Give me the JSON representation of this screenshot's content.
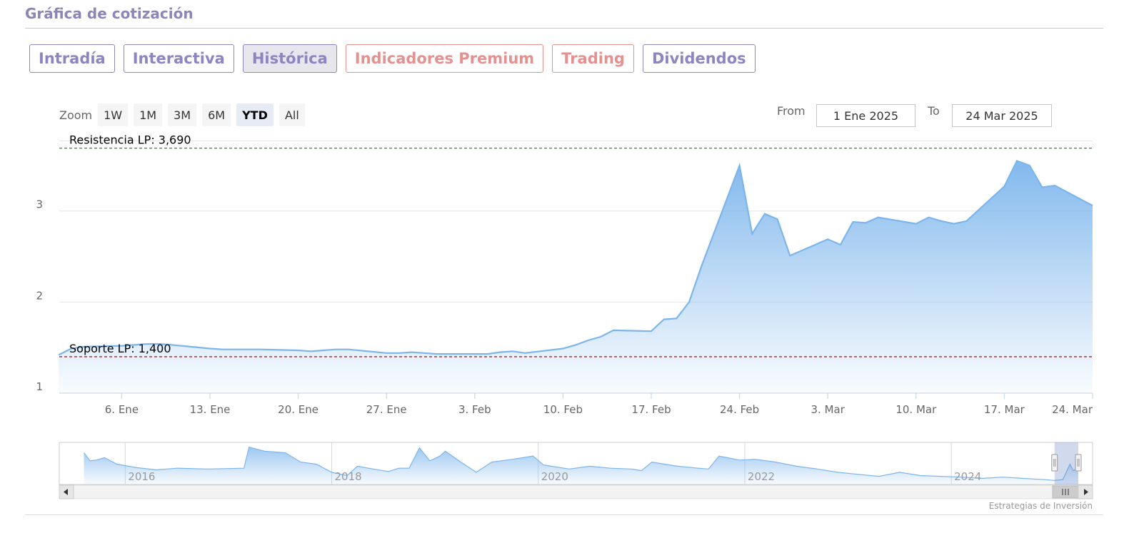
{
  "section_title": "Gráfica de cotización",
  "tabs": [
    {
      "label": "Intradía",
      "style": "normal"
    },
    {
      "label": "Interactiva",
      "style": "normal"
    },
    {
      "label": "Histórica",
      "style": "active"
    },
    {
      "label": "Indicadores Premium",
      "style": "premium"
    },
    {
      "label": "Trading",
      "style": "premium"
    },
    {
      "label": "Dividendos",
      "style": "normal"
    }
  ],
  "zoom": {
    "label": "Zoom",
    "buttons": [
      "1W",
      "1M",
      "3M",
      "6M",
      "YTD",
      "All"
    ],
    "selected": "YTD"
  },
  "range": {
    "from_label": "From",
    "from_value": "1 Ene 2025",
    "to_label": "To",
    "to_value": "24 Mar 2025"
  },
  "credit": "Estrategias de Inversión",
  "colors": {
    "line": "#7cb5ec",
    "resistance": "#2e8b2e",
    "support": "#b22222",
    "tab_accent": "#8c85c2",
    "premium_accent": "#e4918f"
  },
  "chart_data": {
    "type": "area",
    "ylim": [
      1,
      3.75
    ],
    "y_ticks": [
      1,
      2,
      3
    ],
    "xlim": [
      "2025-01-01",
      "2025-03-24"
    ],
    "x_ticks": [
      {
        "date": "2025-01-06",
        "label": "6. Ene"
      },
      {
        "date": "2025-01-13",
        "label": "13. Ene"
      },
      {
        "date": "2025-01-20",
        "label": "20. Ene"
      },
      {
        "date": "2025-01-27",
        "label": "27. Ene"
      },
      {
        "date": "2025-02-03",
        "label": "3. Feb"
      },
      {
        "date": "2025-02-10",
        "label": "10. Feb"
      },
      {
        "date": "2025-02-17",
        "label": "17. Feb"
      },
      {
        "date": "2025-02-24",
        "label": "24. Feb"
      },
      {
        "date": "2025-03-03",
        "label": "3. Mar"
      },
      {
        "date": "2025-03-10",
        "label": "10. Mar"
      },
      {
        "date": "2025-03-17",
        "label": "17. Mar"
      },
      {
        "date": "2025-03-24",
        "label": "24. Mar"
      }
    ],
    "series": [
      {
        "points": [
          [
            "2025-01-01",
            1.42
          ],
          [
            "2025-01-02",
            1.49
          ],
          [
            "2025-01-03",
            1.51
          ],
          [
            "2025-01-06",
            1.52
          ],
          [
            "2025-01-07",
            1.53
          ],
          [
            "2025-01-08",
            1.54
          ],
          [
            "2025-01-09",
            1.54
          ],
          [
            "2025-01-10",
            1.53
          ],
          [
            "2025-01-13",
            1.49
          ],
          [
            "2025-01-14",
            1.48
          ],
          [
            "2025-01-15",
            1.48
          ],
          [
            "2025-01-16",
            1.48
          ],
          [
            "2025-01-17",
            1.48
          ],
          [
            "2025-01-20",
            1.47
          ],
          [
            "2025-01-21",
            1.46
          ],
          [
            "2025-01-22",
            1.47
          ],
          [
            "2025-01-23",
            1.48
          ],
          [
            "2025-01-24",
            1.48
          ],
          [
            "2025-01-27",
            1.44
          ],
          [
            "2025-01-28",
            1.44
          ],
          [
            "2025-01-29",
            1.45
          ],
          [
            "2025-01-30",
            1.44
          ],
          [
            "2025-01-31",
            1.43
          ],
          [
            "2025-02-03",
            1.43
          ],
          [
            "2025-02-04",
            1.43
          ],
          [
            "2025-02-05",
            1.45
          ],
          [
            "2025-02-06",
            1.46
          ],
          [
            "2025-02-07",
            1.44
          ],
          [
            "2025-02-10",
            1.49
          ],
          [
            "2025-02-11",
            1.53
          ],
          [
            "2025-02-12",
            1.58
          ],
          [
            "2025-02-13",
            1.62
          ],
          [
            "2025-02-14",
            1.69
          ],
          [
            "2025-02-17",
            1.68
          ],
          [
            "2025-02-18",
            1.81
          ],
          [
            "2025-02-19",
            1.82
          ],
          [
            "2025-02-20",
            2.0
          ],
          [
            "2025-02-21",
            2.4
          ],
          [
            "2025-02-24",
            3.5
          ],
          [
            "2025-02-25",
            2.75
          ],
          [
            "2025-02-26",
            2.97
          ],
          [
            "2025-02-27",
            2.91
          ],
          [
            "2025-02-28",
            2.51
          ],
          [
            "2025-03-03",
            2.69
          ],
          [
            "2025-03-04",
            2.63
          ],
          [
            "2025-03-05",
            2.88
          ],
          [
            "2025-03-06",
            2.87
          ],
          [
            "2025-03-07",
            2.93
          ],
          [
            "2025-03-10",
            2.86
          ],
          [
            "2025-03-11",
            2.93
          ],
          [
            "2025-03-12",
            2.89
          ],
          [
            "2025-03-13",
            2.86
          ],
          [
            "2025-03-14",
            2.89
          ],
          [
            "2025-03-17",
            3.27
          ],
          [
            "2025-03-18",
            3.55
          ],
          [
            "2025-03-19",
            3.5
          ],
          [
            "2025-03-20",
            3.26
          ],
          [
            "2025-03-21",
            3.28
          ],
          [
            "2025-03-24",
            3.06
          ]
        ]
      }
    ],
    "annotations": [
      {
        "label": "Resistencia LP: 3,690",
        "value": 3.69,
        "color": "#2e8b2e",
        "style": "dashed"
      },
      {
        "label": "Soporte LP: 1,400",
        "value": 1.4,
        "color": "#b22222",
        "style": "dashed"
      }
    ],
    "navigator": {
      "xlim": [
        2015.5,
        2025.23
      ],
      "x_ticks": [
        {
          "year": 2016,
          "label": "2016"
        },
        {
          "year": 2018,
          "label": "2018"
        },
        {
          "year": 2020,
          "label": "2020"
        },
        {
          "year": 2022,
          "label": "2022"
        },
        {
          "year": 2024,
          "label": "2024"
        }
      ],
      "ylim": [
        0,
        1
      ],
      "values": [
        [
          2015.6,
          0.78
        ],
        [
          2015.66,
          0.58
        ],
        [
          2015.72,
          0.6
        ],
        [
          2015.8,
          0.66
        ],
        [
          2015.92,
          0.5
        ],
        [
          2016.1,
          0.42
        ],
        [
          2016.3,
          0.36
        ],
        [
          2016.5,
          0.4
        ],
        [
          2016.8,
          0.38
        ],
        [
          2017.15,
          0.4
        ],
        [
          2017.2,
          0.92
        ],
        [
          2017.35,
          0.82
        ],
        [
          2017.55,
          0.78
        ],
        [
          2017.7,
          0.55
        ],
        [
          2017.85,
          0.5
        ],
        [
          2018.0,
          0.3
        ],
        [
          2018.15,
          0.22
        ],
        [
          2018.25,
          0.45
        ],
        [
          2018.4,
          0.38
        ],
        [
          2018.55,
          0.32
        ],
        [
          2018.65,
          0.4
        ],
        [
          2018.75,
          0.4
        ],
        [
          2018.85,
          0.9
        ],
        [
          2018.95,
          0.58
        ],
        [
          2019.05,
          0.7
        ],
        [
          2019.1,
          0.82
        ],
        [
          2019.25,
          0.55
        ],
        [
          2019.4,
          0.3
        ],
        [
          2019.55,
          0.55
        ],
        [
          2019.75,
          0.62
        ],
        [
          2019.95,
          0.7
        ],
        [
          2020.05,
          0.48
        ],
        [
          2020.3,
          0.38
        ],
        [
          2020.5,
          0.45
        ],
        [
          2020.7,
          0.4
        ],
        [
          2020.9,
          0.38
        ],
        [
          2021.0,
          0.34
        ],
        [
          2021.1,
          0.55
        ],
        [
          2021.35,
          0.45
        ],
        [
          2021.55,
          0.4
        ],
        [
          2021.65,
          0.38
        ],
        [
          2021.75,
          0.7
        ],
        [
          2021.95,
          0.6
        ],
        [
          2022.1,
          0.62
        ],
        [
          2022.3,
          0.55
        ],
        [
          2022.5,
          0.45
        ],
        [
          2022.7,
          0.38
        ],
        [
          2022.9,
          0.3
        ],
        [
          2023.1,
          0.25
        ],
        [
          2023.3,
          0.2
        ],
        [
          2023.5,
          0.3
        ],
        [
          2023.7,
          0.22
        ],
        [
          2023.9,
          0.2
        ],
        [
          2024.1,
          0.18
        ],
        [
          2024.3,
          0.15
        ],
        [
          2024.5,
          0.18
        ],
        [
          2024.7,
          0.15
        ],
        [
          2024.9,
          0.12
        ],
        [
          2025.0,
          0.1
        ],
        [
          2025.08,
          0.12
        ],
        [
          2025.15,
          0.5
        ],
        [
          2025.18,
          0.34
        ],
        [
          2025.23,
          0.4
        ]
      ],
      "selection": [
        2025.0,
        2025.23
      ]
    }
  }
}
